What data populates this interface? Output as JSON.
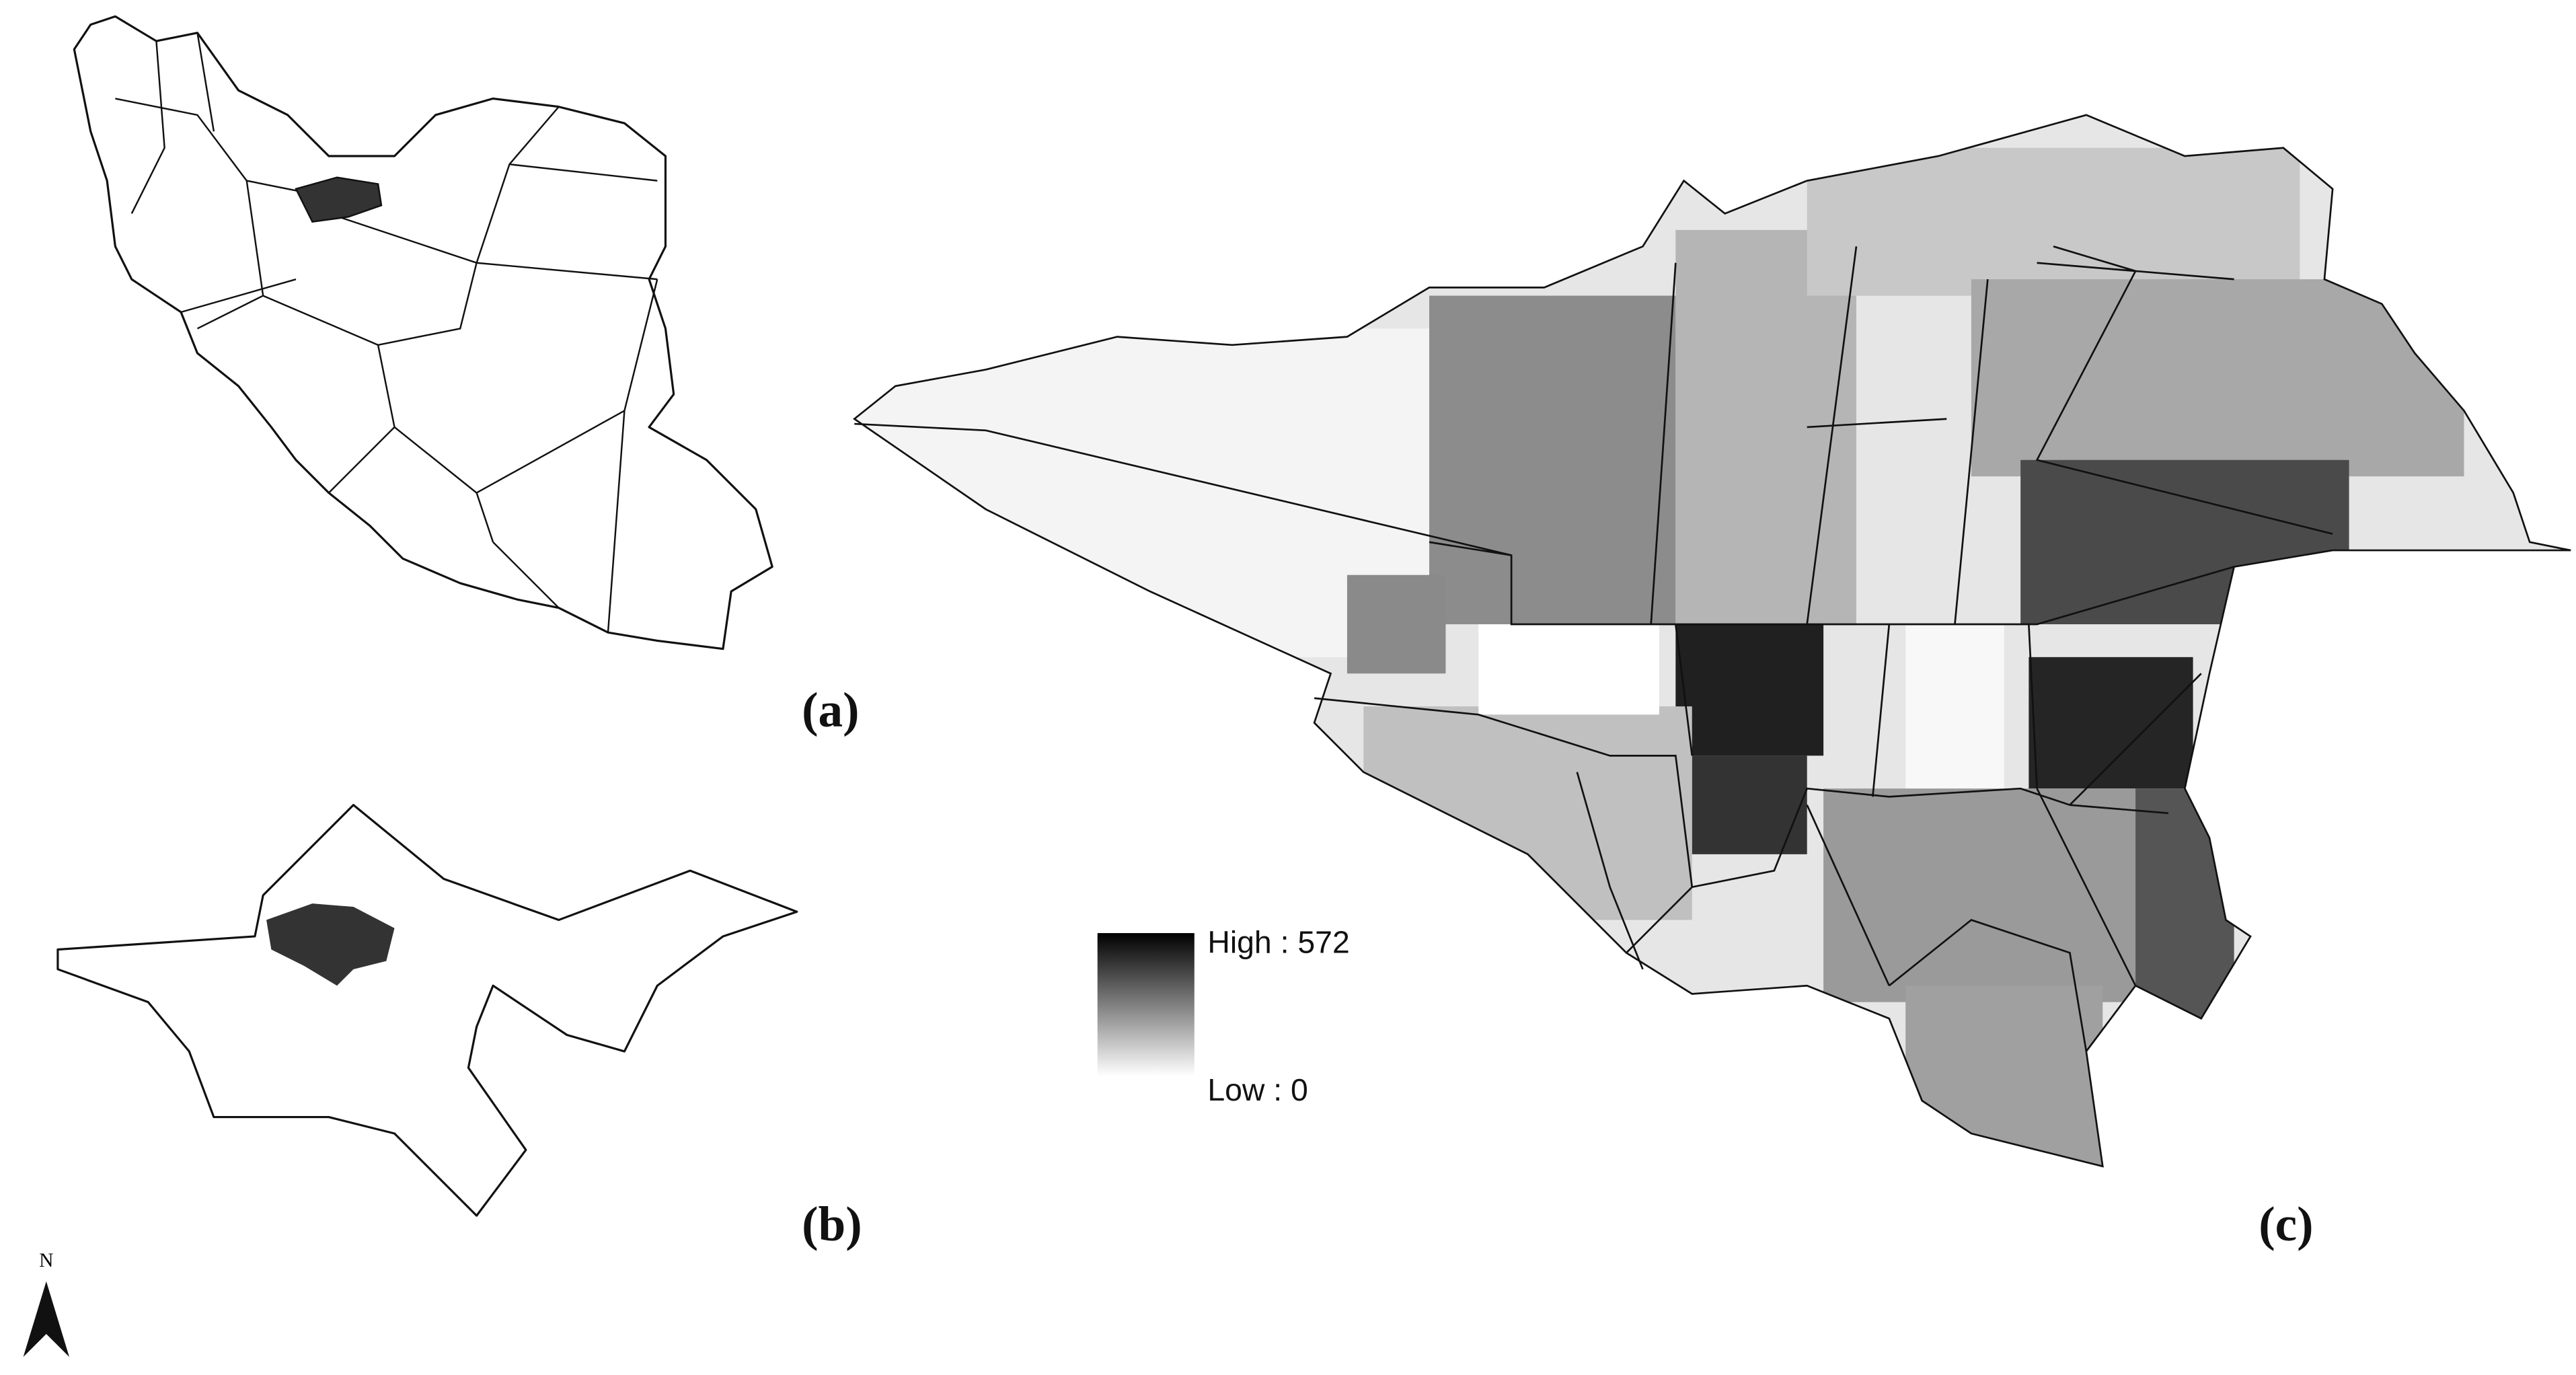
{
  "panels": {
    "a": "(a)",
    "b": "(b)",
    "c": "(c)"
  },
  "legend": {
    "high": "High : 572",
    "low": "Low : 0"
  },
  "north_arrow": "N"
}
